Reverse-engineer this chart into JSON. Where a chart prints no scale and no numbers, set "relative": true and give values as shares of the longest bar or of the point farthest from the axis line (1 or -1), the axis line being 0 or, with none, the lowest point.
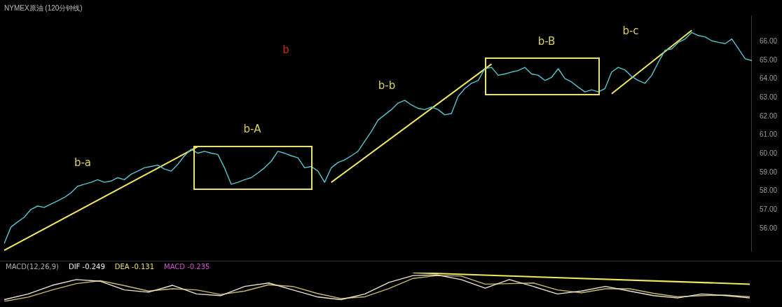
{
  "chart_data": [
    {
      "type": "line",
      "title": "NYMEX原油 (120分钟线)",
      "marker": "none",
      "tick_labels": "y",
      "ylim": [
        54.8,
        67.4
      ],
      "yticks": [
        {
          "value": 56,
          "label": "56.00"
        },
        {
          "value": 57,
          "label": "57.00"
        },
        {
          "value": 58,
          "label": "58.00"
        },
        {
          "value": 59,
          "label": "59.00"
        },
        {
          "value": 60,
          "label": "60.00"
        },
        {
          "value": 61,
          "label": "61.00"
        },
        {
          "value": 62,
          "label": "62.00"
        },
        {
          "value": 63,
          "label": "63.00"
        },
        {
          "value": 64,
          "label": "64.00"
        },
        {
          "value": 65,
          "label": "65.00"
        },
        {
          "value": 66,
          "label": "66.00"
        }
      ],
      "annotations": [
        "b-a",
        "b-A",
        "b-b",
        "b-B",
        "b-c",
        "b"
      ],
      "categories": [
        null,
        null,
        null,
        null,
        null,
        null,
        null,
        null,
        null,
        null,
        null,
        null,
        null,
        null,
        null,
        null,
        null,
        null,
        null,
        null,
        null,
        null,
        null,
        null,
        null,
        null,
        null,
        null,
        null,
        null,
        null,
        null,
        null,
        null,
        null,
        null,
        null,
        null,
        null,
        null,
        null,
        null,
        null,
        null,
        null,
        null,
        null,
        null,
        null,
        null,
        null,
        null,
        null,
        null,
        null,
        null,
        null,
        null,
        null,
        null,
        null,
        null,
        null,
        null,
        null,
        null,
        null,
        null,
        null,
        null,
        null,
        null,
        null,
        null,
        null,
        null,
        null,
        null,
        null,
        null,
        null,
        null,
        null,
        null,
        null,
        null,
        null,
        null,
        null,
        null,
        null,
        null,
        null,
        null,
        null,
        null,
        null,
        null,
        null,
        null,
        null,
        null,
        null,
        null,
        null,
        null,
        null,
        null,
        null,
        null,
        null,
        null,
        null
      ],
      "series": [
        {
          "color": "#59c2cf",
          "values": [
            55.19,
            56.07,
            56.35,
            56.6,
            57.02,
            57.2,
            57.13,
            57.31,
            57.48,
            57.66,
            57.91,
            58.26,
            58.37,
            58.47,
            58.61,
            58.47,
            58.54,
            58.72,
            58.61,
            58.9,
            59.07,
            59.25,
            59.32,
            59.39,
            59.18,
            59.07,
            59.43,
            59.89,
            60.24,
            60.03,
            60.13,
            60.03,
            59.96,
            59.25,
            58.37,
            58.47,
            58.61,
            58.72,
            58.97,
            59.25,
            59.6,
            60.13,
            60.03,
            59.89,
            59.78,
            59.25,
            59.32,
            59.07,
            58.47,
            59.25,
            59.53,
            59.67,
            59.89,
            60.13,
            60.66,
            61.19,
            61.8,
            62.08,
            62.36,
            62.71,
            62.86,
            62.61,
            62.43,
            62.36,
            62.5,
            62.36,
            62.08,
            62.15,
            63.07,
            63.49,
            63.77,
            63.92,
            64.55,
            64.62,
            64.2,
            64.27,
            64.37,
            64.45,
            64.62,
            64.27,
            64.2,
            63.92,
            64.09,
            64.55,
            64.02,
            63.84,
            63.56,
            63.31,
            63.42,
            63.31,
            63.49,
            64.37,
            64.62,
            64.48,
            64.13,
            63.92,
            63.77,
            64.2,
            64.9,
            65.54,
            65.61,
            65.96,
            66.14,
            66.49,
            66.32,
            66.25,
            66.04,
            65.96,
            65.89,
            66.14,
            65.61,
            65.08,
            64.98
          ]
        },
        {
          "color": "#f0e860",
          "values": [
            54.83,
            null,
            null,
            null,
            null,
            null,
            null,
            null,
            null,
            null,
            null,
            null,
            null,
            null,
            null,
            null,
            null,
            null,
            null,
            null,
            null,
            null,
            null,
            null,
            null,
            null,
            null,
            null,
            null,
            60.38,
            null,
            null,
            null,
            null,
            null,
            null,
            null,
            null,
            null,
            null,
            null,
            null,
            null,
            null,
            null,
            null,
            null,
            null,
            null,
            null,
            null,
            null,
            null,
            null,
            null,
            null,
            null,
            null,
            null,
            null,
            null,
            null,
            null,
            null,
            null,
            null,
            null,
            null,
            null,
            null,
            null,
            null,
            null,
            null,
            null,
            null,
            null,
            null,
            null,
            null,
            null,
            null,
            null,
            null,
            null,
            null,
            null,
            null,
            null,
            null,
            null,
            null,
            null,
            null,
            null,
            null,
            null,
            null,
            null,
            null,
            null,
            null,
            null,
            null,
            null,
            null,
            null,
            null,
            null,
            null,
            null,
            null,
            null
          ]
        },
        {
          "color": "#f0e860",
          "values": [
            null,
            null,
            null,
            null,
            null,
            null,
            null,
            null,
            null,
            null,
            null,
            null,
            null,
            null,
            null,
            null,
            null,
            null,
            null,
            null,
            null,
            null,
            null,
            null,
            null,
            null,
            null,
            null,
            null,
            null,
            null,
            null,
            null,
            null,
            null,
            null,
            null,
            null,
            null,
            null,
            null,
            null,
            null,
            null,
            null,
            null,
            null,
            null,
            null,
            58.47,
            null,
            null,
            null,
            null,
            null,
            null,
            null,
            null,
            null,
            null,
            null,
            null,
            null,
            null,
            null,
            null,
            null,
            null,
            null,
            null,
            null,
            null,
            null,
            64.8,
            null,
            null,
            null,
            null,
            null,
            null,
            null,
            null,
            null,
            null,
            null,
            null,
            null,
            null,
            null,
            null,
            null,
            null,
            null,
            null,
            null,
            null,
            null,
            null,
            null,
            null,
            null,
            null,
            null,
            null,
            null,
            null,
            null,
            null,
            null,
            null,
            null,
            null,
            null
          ]
        },
        {
          "color": "#f0e860",
          "values": [
            null,
            null,
            null,
            null,
            null,
            null,
            null,
            null,
            null,
            null,
            null,
            null,
            null,
            null,
            null,
            null,
            null,
            null,
            null,
            null,
            null,
            null,
            null,
            null,
            null,
            null,
            null,
            null,
            null,
            null,
            null,
            null,
            null,
            null,
            null,
            null,
            null,
            null,
            null,
            null,
            null,
            null,
            null,
            null,
            null,
            null,
            null,
            null,
            null,
            null,
            null,
            null,
            null,
            null,
            null,
            null,
            null,
            null,
            null,
            null,
            null,
            null,
            null,
            null,
            null,
            null,
            null,
            null,
            null,
            null,
            null,
            null,
            null,
            null,
            null,
            null,
            null,
            null,
            null,
            null,
            null,
            null,
            null,
            null,
            null,
            null,
            null,
            null,
            null,
            null,
            null,
            63.21,
            null,
            null,
            null,
            null,
            null,
            null,
            null,
            null,
            null,
            null,
            null,
            66.6,
            null,
            null,
            null,
            null,
            null,
            null,
            null,
            null,
            null
          ]
        }
      ]
    },
    {
      "type": "line",
      "title": "MACD(12,26,9)",
      "relative": true,
      "marker": "none",
      "tick_labels": false,
      "annotations": [
        "DIF -0.249",
        "DEA -0.131",
        "MACD -0.235"
      ],
      "categories": [
        null,
        null,
        null,
        null,
        null,
        null,
        null,
        null,
        null,
        null,
        null,
        null,
        null,
        null,
        null,
        null,
        null,
        null,
        null,
        null,
        null,
        null,
        null,
        null,
        null,
        null,
        null,
        null,
        null,
        null,
        null,
        null
      ],
      "series": [
        {
          "color": "#e8e4d0",
          "values": [
            0.06,
            0.26,
            0.56,
            0.76,
            0.7,
            0.4,
            0.32,
            0.56,
            0.26,
            0.2,
            0.52,
            0.64,
            0.4,
            0.16,
            0.06,
            0.26,
            0.66,
            0.9,
            0.92,
            0.76,
            0.46,
            0.76,
            0.52,
            0.26,
            0.36,
            0.52,
            0.36,
            0.2,
            0.12,
            0.26,
            0.2,
            0.12
          ]
        },
        {
          "color": "#c8b870",
          "values": [
            0,
            0.15,
            0.4,
            0.62,
            0.72,
            0.55,
            0.36,
            0.44,
            0.4,
            0.24,
            0.36,
            0.58,
            0.52,
            0.28,
            0.1,
            0.16,
            0.45,
            0.8,
            0.9,
            0.88,
            0.6,
            0.62,
            0.64,
            0.4,
            0.3,
            0.44,
            0.44,
            0.28,
            0.16,
            0.2,
            0.22,
            0.16
          ]
        },
        {
          "color": "#f0e860",
          "values": [
            null,
            null,
            null,
            null,
            null,
            null,
            null,
            null,
            null,
            null,
            null,
            null,
            null,
            null,
            null,
            null,
            null,
            1.0,
            null,
            null,
            null,
            null,
            null,
            null,
            null,
            null,
            null,
            null,
            null,
            null,
            null,
            0.6
          ]
        }
      ]
    }
  ]
}
